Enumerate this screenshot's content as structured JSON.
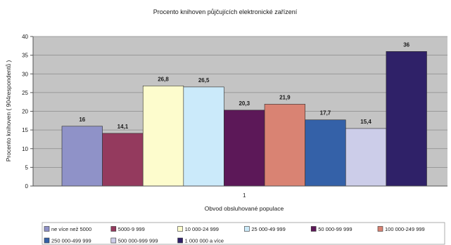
{
  "chart_data": {
    "type": "bar",
    "title": "Procento knihoven půjčujících elektronické zařízení",
    "xlabel": "Obvod obsluhované populace",
    "ylabel": "Procento knihoven ( 904respondentů )",
    "categories": [
      "1"
    ],
    "ylim": [
      0,
      40
    ],
    "yticks": [
      0,
      5,
      10,
      15,
      20,
      25,
      30,
      35,
      40
    ],
    "grid": true,
    "legend": "bottom",
    "series": [
      {
        "name": "ne více než 5000",
        "values": [
          16
        ],
        "labels": [
          "16"
        ],
        "color": "#8f92c8"
      },
      {
        "name": "5000-9 999",
        "values": [
          14.1
        ],
        "labels": [
          "14,1"
        ],
        "color": "#943a5e"
      },
      {
        "name": "10 000-24 999",
        "values": [
          26.8
        ],
        "labels": [
          "26,8"
        ],
        "color": "#fdfccd"
      },
      {
        "name": "25 000-49 999",
        "values": [
          26.5
        ],
        "labels": [
          "26,5"
        ],
        "color": "#cbeafa"
      },
      {
        "name": "50 000-99 999",
        "values": [
          20.3
        ],
        "labels": [
          "20,3"
        ],
        "color": "#5c1858"
      },
      {
        "name": "100 000-249 999",
        "values": [
          21.9
        ],
        "labels": [
          "21,9"
        ],
        "color": "#d98373"
      },
      {
        "name": "250 000-499 999",
        "values": [
          17.7
        ],
        "labels": [
          "17,7"
        ],
        "color": "#3461a8"
      },
      {
        "name": "500 000-999 999",
        "values": [
          15.4
        ],
        "labels": [
          "15,4"
        ],
        "color": "#cccde9"
      },
      {
        "name": "1 000 000 a více",
        "values": [
          36
        ],
        "labels": [
          "36"
        ],
        "color": "#2f2168"
      }
    ]
  }
}
